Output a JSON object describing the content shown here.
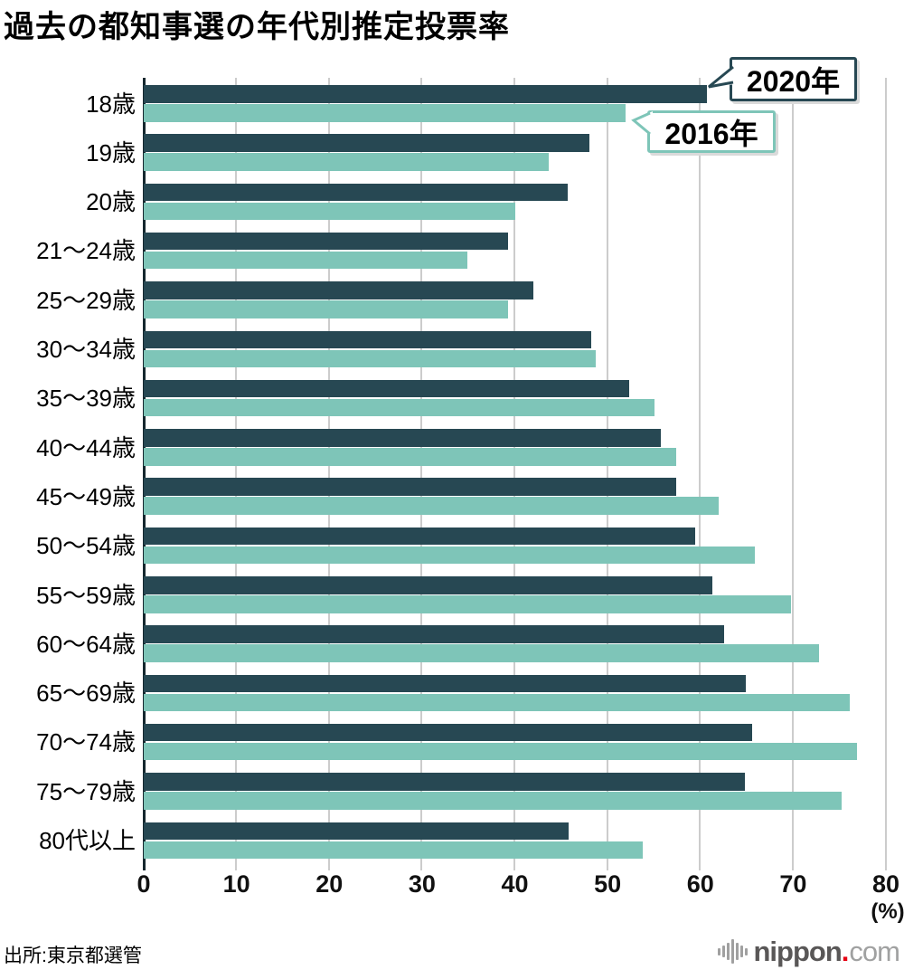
{
  "title": "過去の都知事選の年代別推定投票率",
  "source": "出所:東京都選管",
  "legend": {
    "s2020": "2020年",
    "s2016": "2016年"
  },
  "axis": {
    "ticks": [
      "0",
      "10",
      "20",
      "30",
      "40",
      "50",
      "60",
      "70",
      "80"
    ],
    "unit": "(%)",
    "min": 0,
    "max": 80
  },
  "colors": {
    "bar_2020": "#274853",
    "bar_2016": "#7EC5B8",
    "grid": "#CCCCCC",
    "axis_line": "#15272E",
    "logo_red": "#E60012",
    "logo_gray": "#595757"
  },
  "logo": {
    "name": "nippon.com",
    "main": "nippon",
    "dot": ".",
    "tld": "com"
  },
  "chart_data": {
    "type": "bar",
    "orientation": "horizontal",
    "title": "過去の都知事選の年代別推定投票率",
    "xlabel": "(%)",
    "xlim": [
      0,
      80
    ],
    "grid": true,
    "legend_position": "callouts top-right",
    "categories": [
      "18歳",
      "19歳",
      "20歳",
      "21〜24歳",
      "25〜29歳",
      "30〜34歳",
      "35〜39歳",
      "40〜44歳",
      "45〜49歳",
      "50〜54歳",
      "55〜59歳",
      "60〜64歳",
      "65〜69歳",
      "70〜74歳",
      "75〜79歳",
      "80代以上"
    ],
    "series": [
      {
        "name": "2020年",
        "color": "#274853",
        "values": [
          60.7,
          48.0,
          45.7,
          39.3,
          42.0,
          48.2,
          52.3,
          55.7,
          57.4,
          59.4,
          61.3,
          62.6,
          64.9,
          65.6,
          64.8,
          45.8
        ]
      },
      {
        "name": "2016年",
        "color": "#7EC5B8",
        "values": [
          51.9,
          43.7,
          40.0,
          34.9,
          39.3,
          48.7,
          55.1,
          57.4,
          62.0,
          65.9,
          69.8,
          72.8,
          76.1,
          76.9,
          75.2,
          53.8
        ]
      }
    ]
  }
}
